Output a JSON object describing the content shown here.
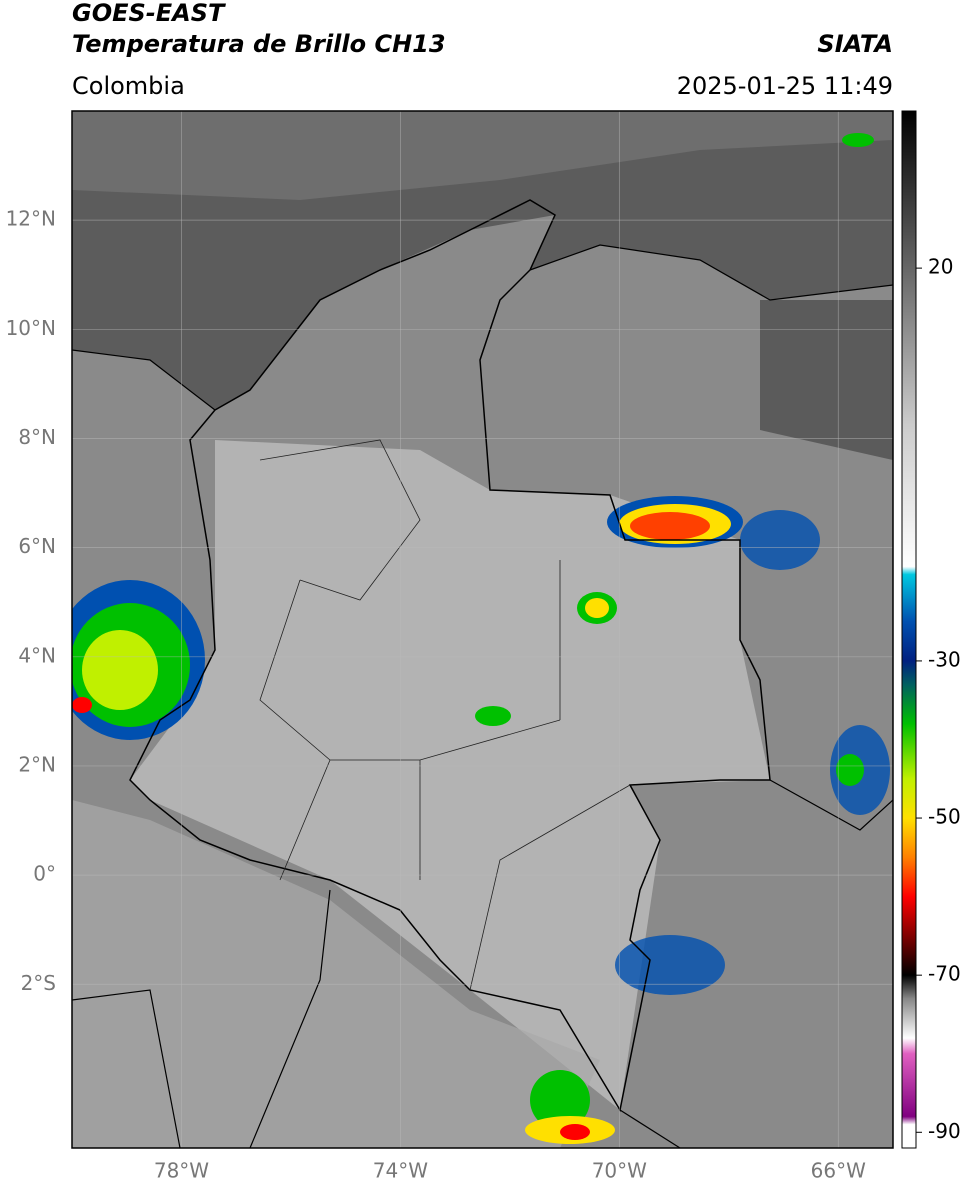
{
  "header": {
    "title": "GOES-EAST",
    "subtitle": "Temperatura de Brillo CH13",
    "source": "SIATA",
    "region": "Colombia",
    "datetime": "2025-01-25 11:49"
  },
  "map": {
    "lon_range": [
      -80,
      -65
    ],
    "lat_range": [
      -5,
      14
    ],
    "grid": true,
    "lat_ticks": [
      {
        "value": 12,
        "label": "12°N"
      },
      {
        "value": 10,
        "label": "10°N"
      },
      {
        "value": 8,
        "label": "8°N"
      },
      {
        "value": 6,
        "label": "6°N"
      },
      {
        "value": 4,
        "label": "4°N"
      },
      {
        "value": 2,
        "label": "2°N"
      },
      {
        "value": 0,
        "label": "0°"
      },
      {
        "value": -2,
        "label": "2°S"
      }
    ],
    "lon_ticks": [
      {
        "value": -78,
        "label": "78°W"
      },
      {
        "value": -74,
        "label": "74°W"
      },
      {
        "value": -70,
        "label": "70°W"
      },
      {
        "value": -66,
        "label": "66°W"
      }
    ]
  },
  "colorbar": {
    "range": [
      -92,
      40
    ],
    "ticks": [
      20,
      -30,
      -50,
      -70,
      -90
    ],
    "colors": [
      {
        "value": 40,
        "color": "#000000"
      },
      {
        "value": 30,
        "color": "#333333"
      },
      {
        "value": 20,
        "color": "#666666"
      },
      {
        "value": 10,
        "color": "#999999"
      },
      {
        "value": 0,
        "color": "#cccccc"
      },
      {
        "value": -18,
        "color": "#ffffff"
      },
      {
        "value": -19,
        "color": "#00c8e0"
      },
      {
        "value": -25,
        "color": "#0050b0"
      },
      {
        "value": -30,
        "color": "#002080"
      },
      {
        "value": -33,
        "color": "#006060"
      },
      {
        "value": -38,
        "color": "#00c000"
      },
      {
        "value": -45,
        "color": "#c0f000"
      },
      {
        "value": -50,
        "color": "#ffe000"
      },
      {
        "value": -55,
        "color": "#ff8000"
      },
      {
        "value": -60,
        "color": "#ff0000"
      },
      {
        "value": -65,
        "color": "#800000"
      },
      {
        "value": -70,
        "color": "#000000"
      },
      {
        "value": -73,
        "color": "#888888"
      },
      {
        "value": -78,
        "color": "#ffffff"
      },
      {
        "value": -80,
        "color": "#e060c0"
      },
      {
        "value": -88,
        "color": "#800080"
      },
      {
        "value": -89,
        "color": "#ffffff"
      }
    ]
  }
}
